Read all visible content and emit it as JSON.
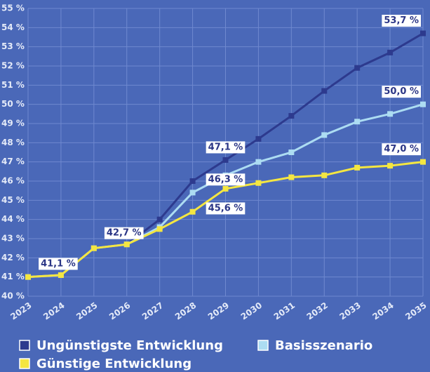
{
  "chart_data": {
    "type": "line",
    "x": [
      2023,
      2024,
      2025,
      2026,
      2027,
      2028,
      2029,
      2030,
      2031,
      2032,
      2033,
      2034,
      2035
    ],
    "xlim": [
      2023,
      2035
    ],
    "xticks": [
      2023,
      2024,
      2025,
      2026,
      2027,
      2028,
      2029,
      2030,
      2031,
      2032,
      2033,
      2034,
      2035
    ],
    "ylim": [
      40,
      55
    ],
    "yticks": [
      {
        "value": 40,
        "label": "40 %"
      },
      {
        "value": 41,
        "label": "41 %"
      },
      {
        "value": 42,
        "label": "42 %"
      },
      {
        "value": 43,
        "label": "43 %"
      },
      {
        "value": 44,
        "label": "44 %"
      },
      {
        "value": 45,
        "label": "45 %"
      },
      {
        "value": 46,
        "label": "46 %"
      },
      {
        "value": 47,
        "label": "47 %"
      },
      {
        "value": 48,
        "label": "48 %"
      },
      {
        "value": 49,
        "label": "49 %"
      },
      {
        "value": 50,
        "label": "50 %"
      },
      {
        "value": 51,
        "label": "51 %"
      },
      {
        "value": 52,
        "label": "52 %"
      },
      {
        "value": 53,
        "label": "53 %"
      },
      {
        "value": 54,
        "label": "54 %"
      },
      {
        "value": 55,
        "label": "55 %"
      }
    ],
    "grid": true,
    "series": [
      {
        "name": "Ungünstigste Entwicklung",
        "color": "#2d3a8e",
        "values": [
          41.0,
          41.1,
          42.5,
          42.7,
          44.0,
          46.0,
          47.1,
          48.2,
          49.4,
          50.7,
          51.9,
          52.7,
          53.7
        ],
        "value_labels": [
          null,
          null,
          null,
          null,
          null,
          null,
          "47,1 %",
          null,
          null,
          null,
          null,
          null,
          "53,7 %"
        ]
      },
      {
        "name": "Basisszenario",
        "color": "#acdcf2",
        "values": [
          41.0,
          41.1,
          42.5,
          42.7,
          43.6,
          45.4,
          46.3,
          47.0,
          47.5,
          48.4,
          49.1,
          49.5,
          50.0
        ],
        "value_labels": [
          null,
          null,
          null,
          null,
          null,
          null,
          "46,3 %",
          null,
          null,
          null,
          null,
          null,
          "50,0 %"
        ]
      },
      {
        "name": "Günstige Entwicklung",
        "color": "#f4e641",
        "values": [
          41.0,
          41.1,
          42.5,
          42.7,
          43.5,
          44.4,
          45.6,
          45.9,
          46.2,
          46.3,
          46.7,
          46.8,
          47.0
        ],
        "value_labels": [
          null,
          "41,1 %",
          null,
          "42,7 %",
          null,
          null,
          "45,6 %",
          null,
          null,
          null,
          null,
          null,
          "47,0 %"
        ]
      }
    ]
  }
}
